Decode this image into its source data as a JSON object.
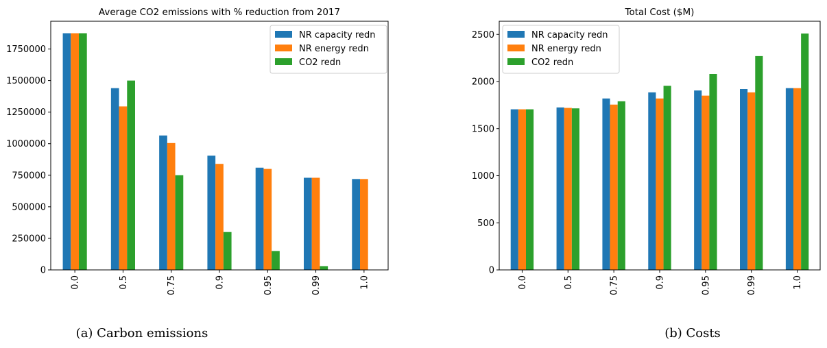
{
  "figure": {
    "caption_a": "(a) Carbon emissions",
    "caption_b": "(b) Costs"
  },
  "chart_data": [
    {
      "type": "bar",
      "title": "Average CO2 emissions with % reduction from 2017",
      "xlabel": "",
      "ylabel": "",
      "categories": [
        "0.0",
        "0.5",
        "0.75",
        "0.9",
        "0.95",
        "0.99",
        "1.0"
      ],
      "ylim": [
        0,
        1970000
      ],
      "yticks": [
        0,
        250000,
        500000,
        750000,
        1000000,
        1250000,
        1500000,
        1750000
      ],
      "grid": false,
      "legend": "top-right",
      "series": [
        {
          "name": "NR capacity redn",
          "color": "#1f77b4",
          "values": [
            1875000,
            1440000,
            1065000,
            905000,
            810000,
            730000,
            720000
          ]
        },
        {
          "name": "NR energy redn",
          "color": "#ff7f0e",
          "values": [
            1875000,
            1295000,
            1005000,
            840000,
            800000,
            730000,
            720000
          ]
        },
        {
          "name": "CO2 redn",
          "color": "#2ca02c",
          "values": [
            1875000,
            1500000,
            750000,
            300000,
            150000,
            30000,
            0
          ]
        }
      ]
    },
    {
      "type": "bar",
      "title": "Total Cost ($M)",
      "xlabel": "",
      "ylabel": "",
      "categories": [
        "0.0",
        "0.5",
        "0.75",
        "0.9",
        "0.95",
        "0.99",
        "1.0"
      ],
      "ylim": [
        0,
        2640
      ],
      "yticks": [
        0,
        500,
        1000,
        1500,
        2000,
        2500
      ],
      "grid": false,
      "legend": "top-left",
      "series": [
        {
          "name": "NR capacity redn",
          "color": "#1f77b4",
          "values": [
            1705,
            1725,
            1820,
            1885,
            1905,
            1920,
            1930
          ]
        },
        {
          "name": "NR energy redn",
          "color": "#ff7f0e",
          "values": [
            1705,
            1720,
            1755,
            1820,
            1850,
            1885,
            1930
          ]
        },
        {
          "name": "CO2 redn",
          "color": "#2ca02c",
          "values": [
            1705,
            1715,
            1790,
            1955,
            2080,
            2270,
            2510
          ]
        }
      ]
    }
  ]
}
